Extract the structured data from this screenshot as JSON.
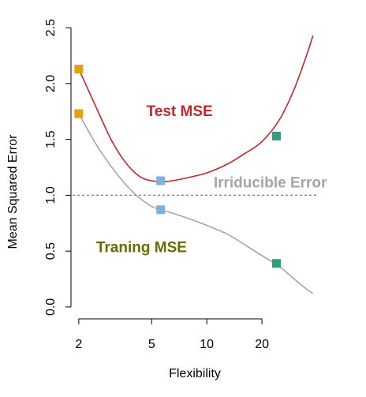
{
  "chart_data": {
    "type": "line",
    "xlabel": "Flexibility",
    "ylabel": "Mean Squared Error",
    "x_scale": "log",
    "xlim": [
      1.85,
      40
    ],
    "ylim": [
      -0.05,
      2.55
    ],
    "x_ticks": [
      2,
      5,
      10,
      20
    ],
    "x_tick_labels": [
      "2",
      "5",
      "10",
      "20"
    ],
    "y_ticks": [
      0.0,
      0.5,
      1.0,
      1.5,
      2.0,
      2.5
    ],
    "y_tick_labels": [
      "0.0",
      "0.5",
      "1.0",
      "1.5",
      "2.0",
      "2.5"
    ],
    "grid": false,
    "series": [
      {
        "name": "Test MSE",
        "color": "#c0282d",
        "x": [
          2,
          2.5,
          3,
          3.5,
          4,
          4.5,
          5,
          5.6,
          6.5,
          8,
          10,
          13,
          16,
          20,
          25,
          30,
          35,
          38
        ],
        "y": [
          2.13,
          1.78,
          1.5,
          1.32,
          1.21,
          1.15,
          1.13,
          1.12,
          1.13,
          1.16,
          1.2,
          1.28,
          1.37,
          1.48,
          1.68,
          1.95,
          2.25,
          2.43
        ]
      },
      {
        "name": "Traning MSE",
        "color": "#a6a6a6",
        "x": [
          2,
          2.5,
          3,
          3.5,
          4,
          4.5,
          5,
          5.6,
          6.5,
          8,
          10,
          13,
          16,
          20,
          25,
          30,
          35,
          38
        ],
        "y": [
          1.73,
          1.45,
          1.26,
          1.12,
          1.02,
          0.95,
          0.9,
          0.87,
          0.84,
          0.79,
          0.73,
          0.65,
          0.56,
          0.46,
          0.36,
          0.25,
          0.16,
          0.12
        ]
      }
    ],
    "reference_line": {
      "label": "Irriducible Error",
      "y": 1.0,
      "color": "#7f7f7f",
      "style": "dashed"
    },
    "markers": [
      {
        "x": 2,
        "y": 2.13,
        "color": "#e5a00d"
      },
      {
        "x": 2,
        "y": 1.73,
        "color": "#e5a00d"
      },
      {
        "x": 5.6,
        "y": 1.13,
        "color": "#79b3de"
      },
      {
        "x": 5.6,
        "y": 0.87,
        "color": "#79b3de"
      },
      {
        "x": 24,
        "y": 1.53,
        "color": "#2e9e7c"
      },
      {
        "x": 24,
        "y": 0.39,
        "color": "#2e9e7c"
      }
    ],
    "annotations": [
      {
        "text": "Test MSE",
        "x": 7.1,
        "y": 1.71,
        "color": "#c0282d"
      },
      {
        "text": "Traning MSE",
        "x": 4.4,
        "y": 0.49,
        "color": "#6b6b00"
      },
      {
        "text": "Irriducible Error",
        "x": 22.2,
        "y": 1.07,
        "color": "#a6a6a6"
      }
    ]
  }
}
